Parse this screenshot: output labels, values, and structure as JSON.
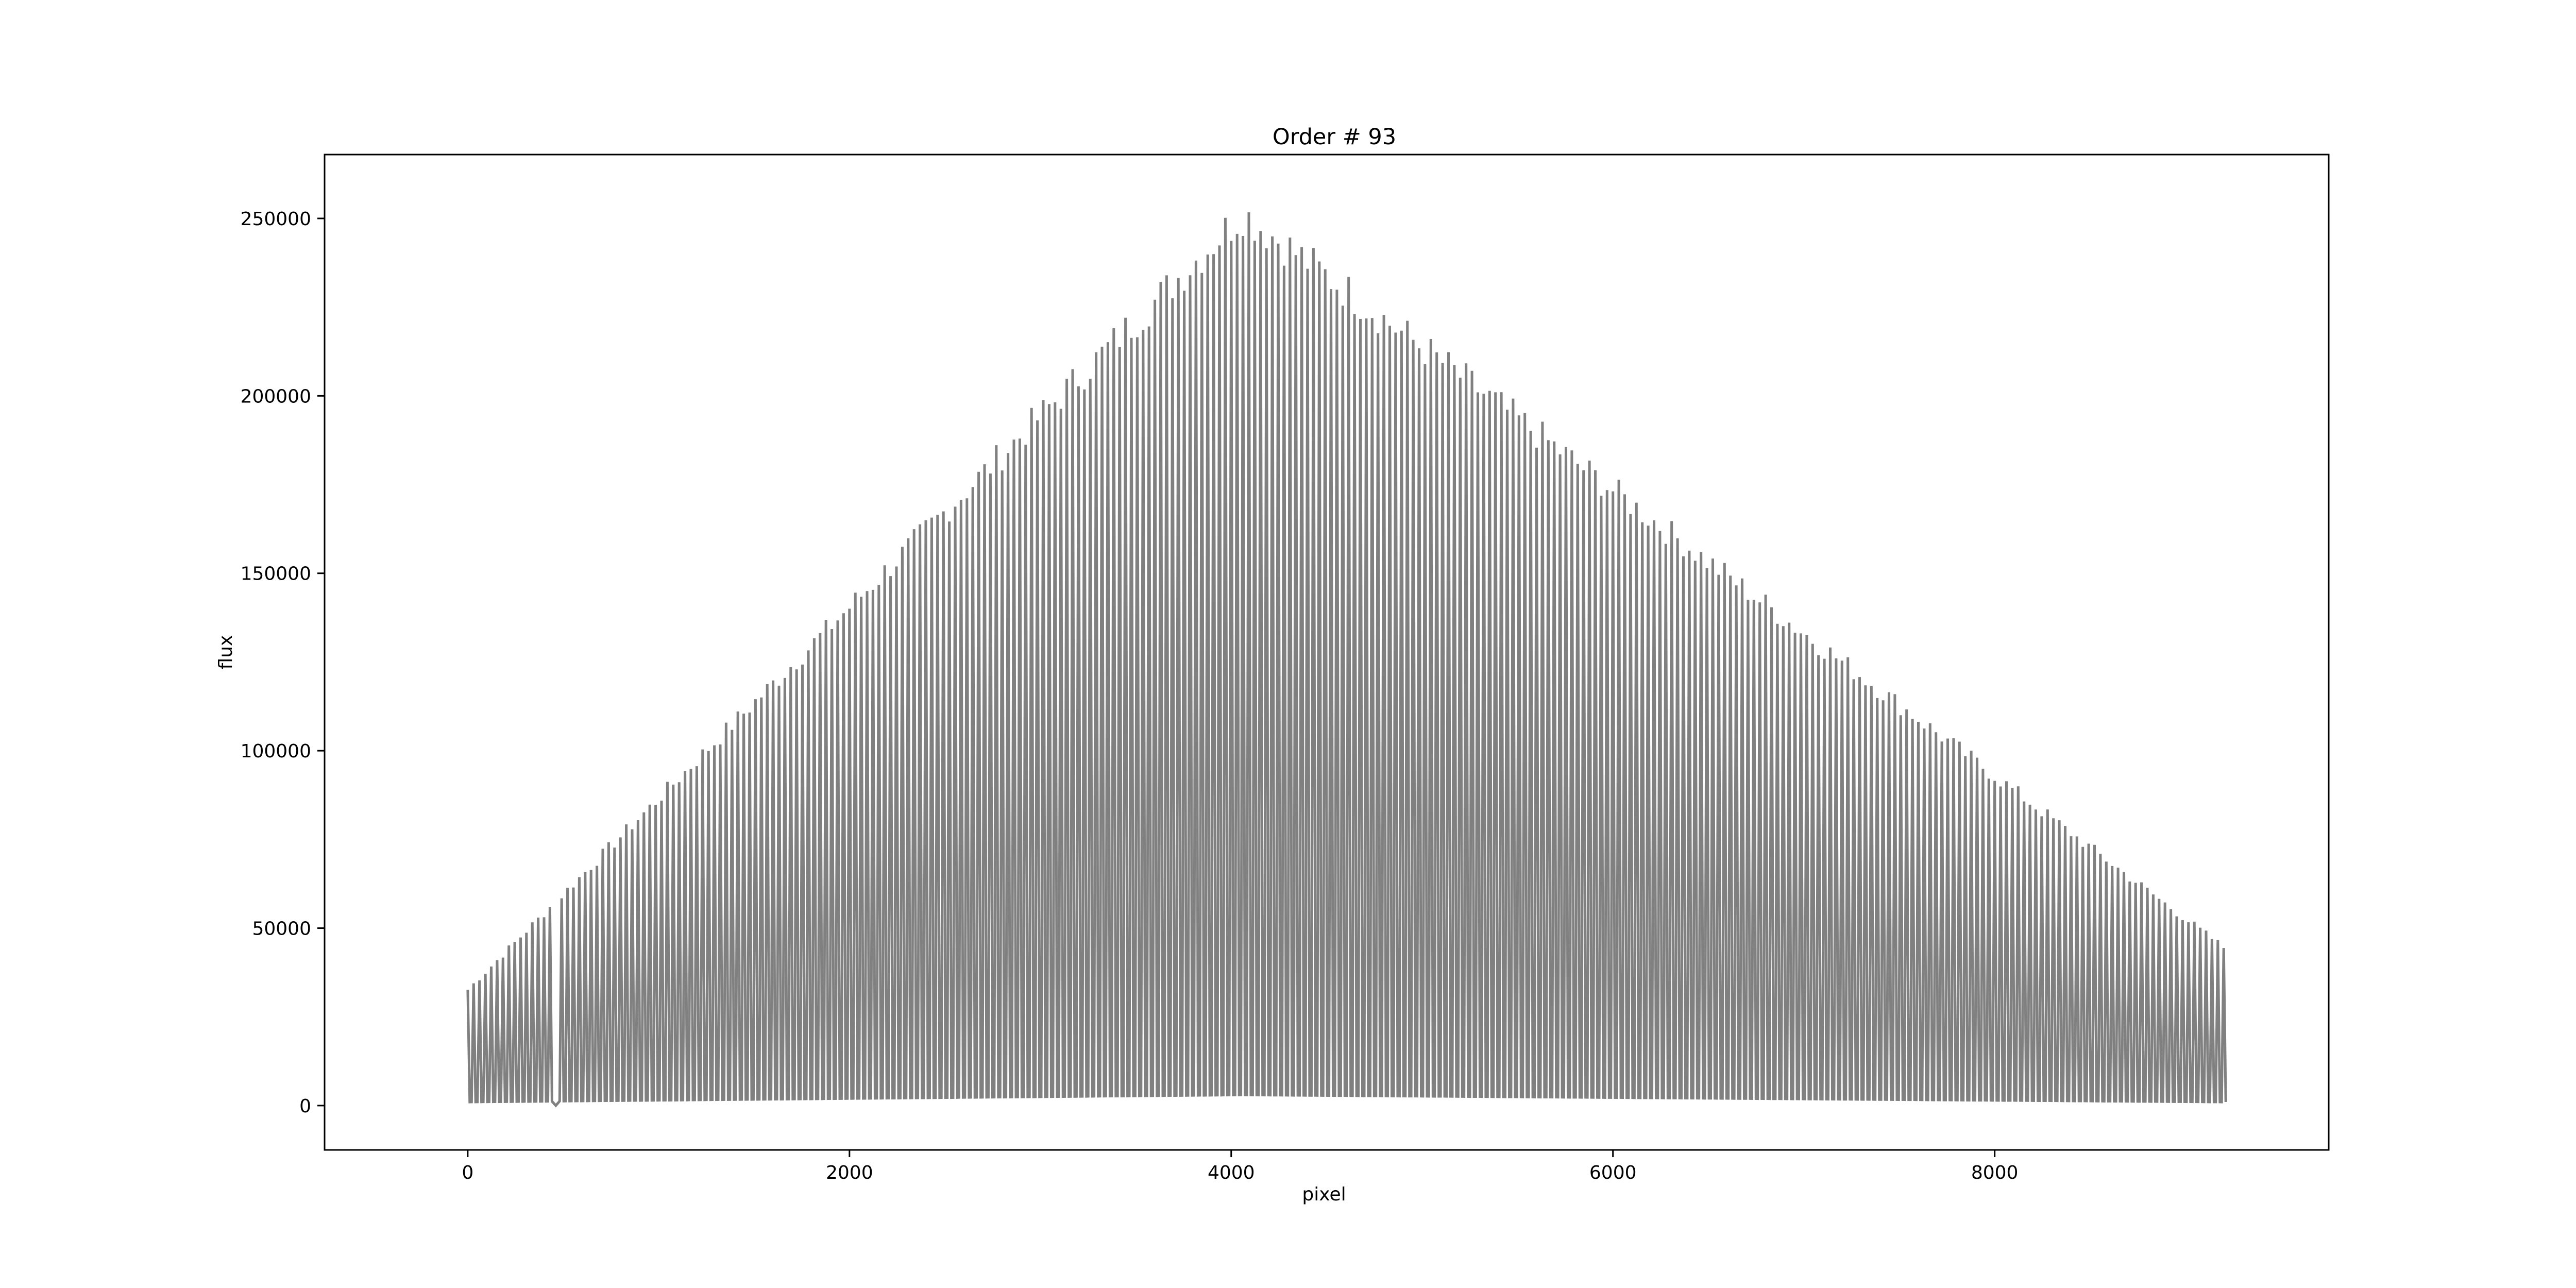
{
  "chart_data": {
    "type": "line",
    "title": "Order # 93",
    "xlabel": "pixel",
    "ylabel": "flux",
    "xlim": [
      -750,
      9750
    ],
    "ylim": [
      -12500,
      268000
    ],
    "xticks": [
      0,
      2000,
      4000,
      6000,
      8000
    ],
    "yticks": [
      0,
      50000,
      100000,
      150000,
      200000,
      250000
    ],
    "xtick_labels": [
      "0",
      "2000",
      "4000",
      "6000",
      "8000"
    ],
    "ytick_labels": [
      "0",
      "50000",
      "100000",
      "150000",
      "200000",
      "250000"
    ],
    "grid": false,
    "legend": "none",
    "line_color": "#808080",
    "series": [
      {
        "peak_pixels": [
          0,
          4060,
          9200
        ],
        "peak_flux": [
          33000,
          254000,
          45000
        ],
        "trough_pixels": [
          0,
          4060,
          9200
        ],
        "trough_flux": [
          1000,
          3000,
          1000
        ],
        "num_peaks": 300,
        "gap_pixels": [
          440,
          480
        ]
      }
    ]
  }
}
